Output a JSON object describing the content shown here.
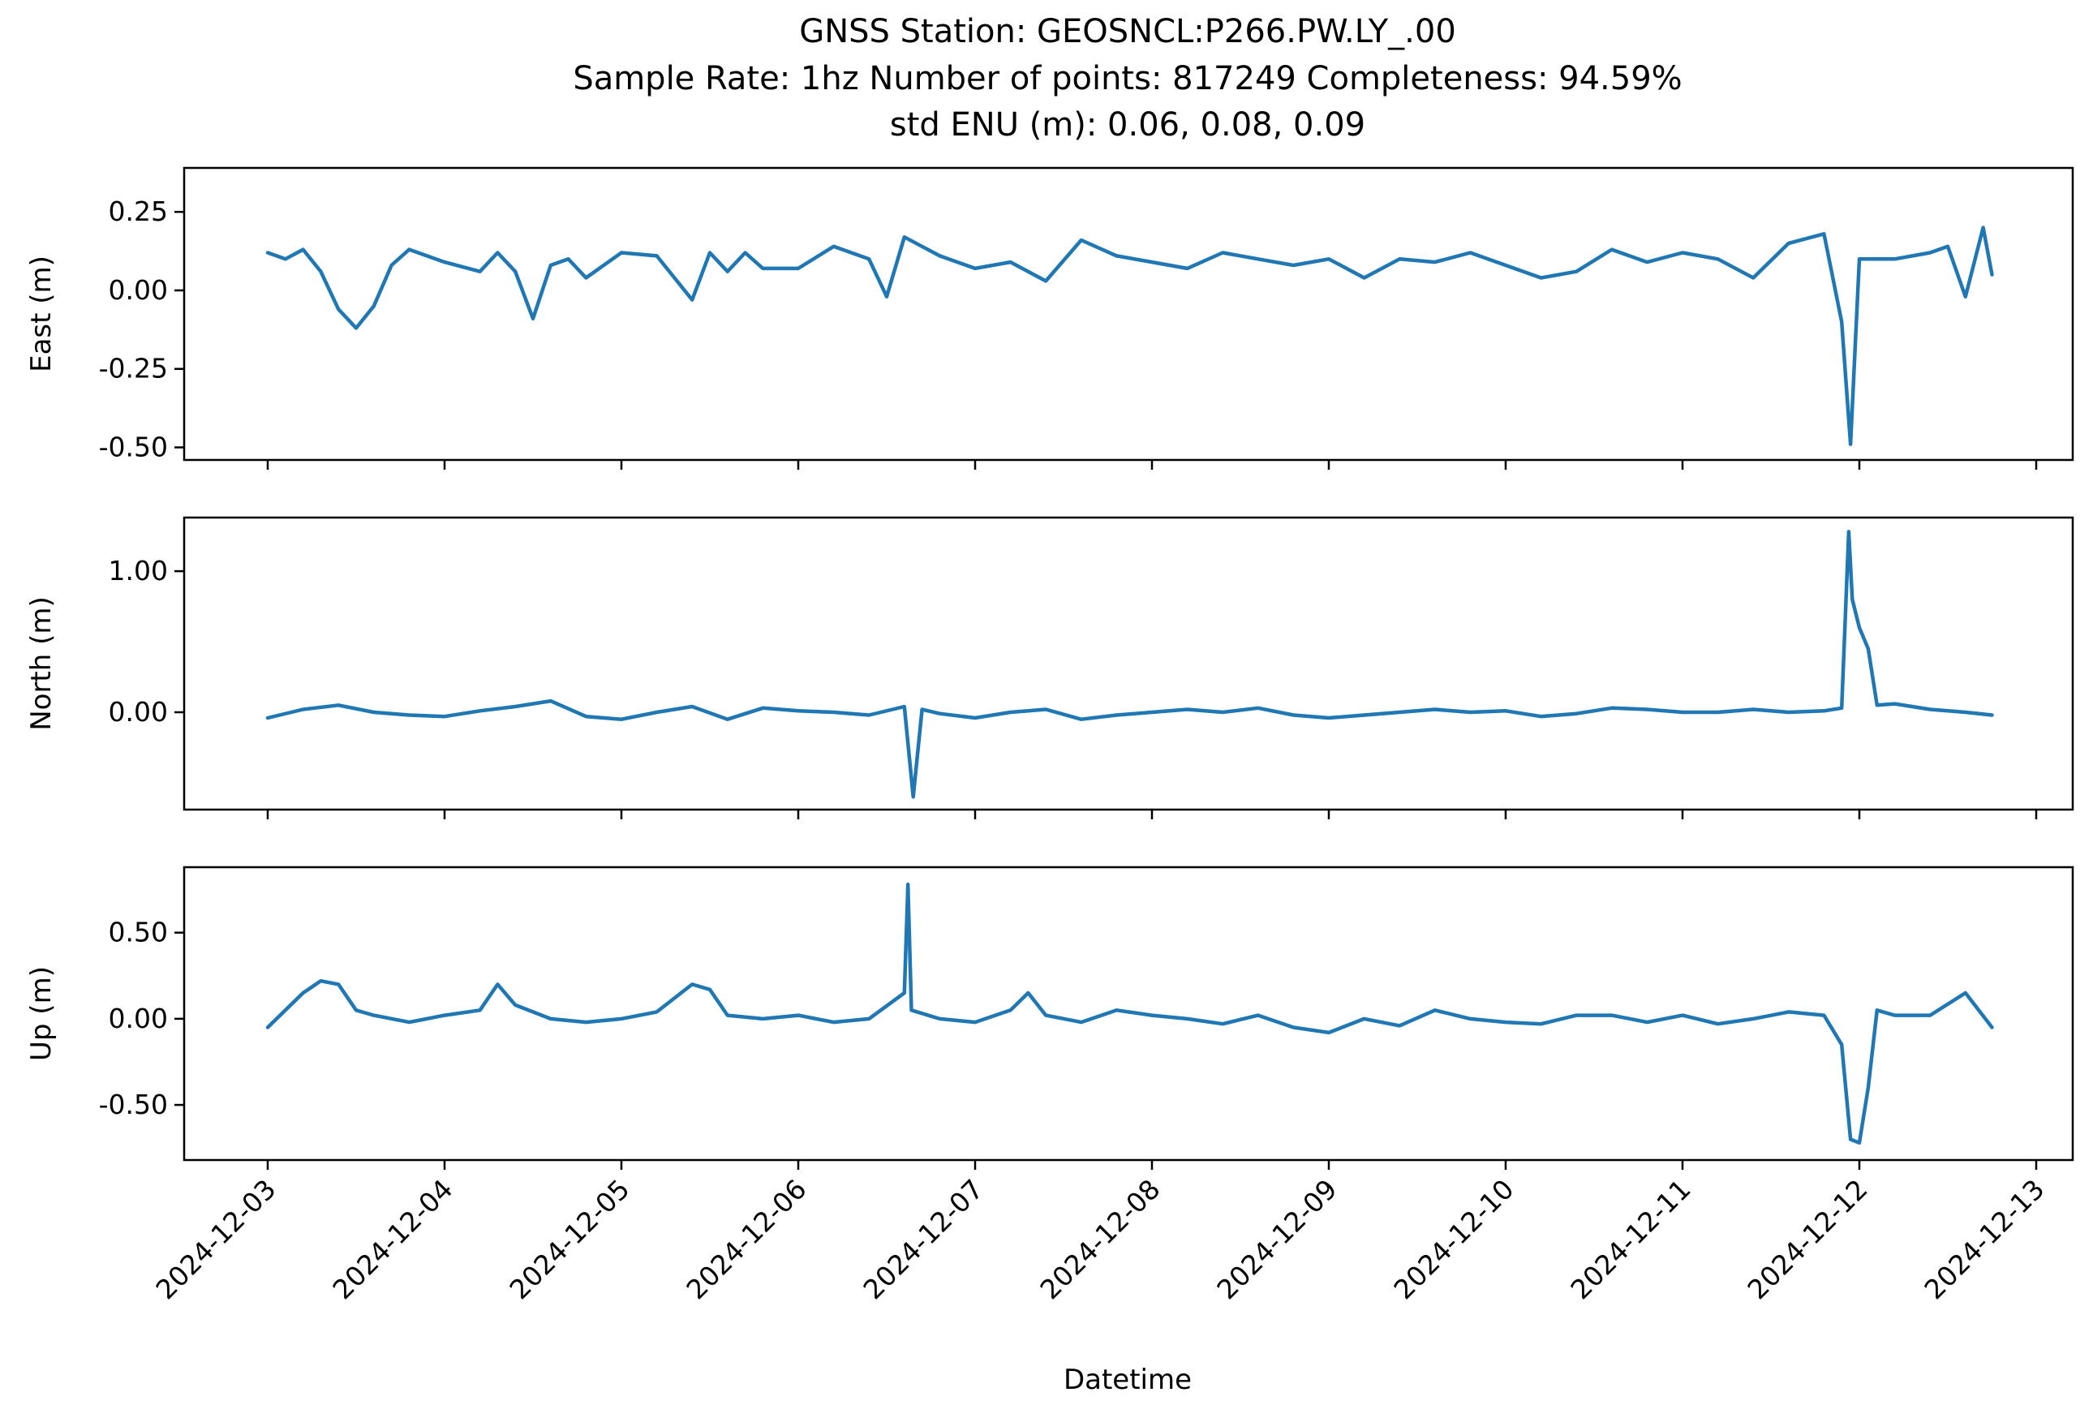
{
  "chart_data": {
    "type": "line",
    "title_lines": [
      "GNSS Station: GEOSNCL:P266.PW.LY_.00",
      "Sample Rate: 1hz   Number of points: 817249    Completeness:  94.59%",
      "std ENU (m):  0.06, 0.08, 0.09"
    ],
    "xlabel": "Datetime",
    "x_ticks": [
      "2024-12-03",
      "2024-12-04",
      "2024-12-05",
      "2024-12-06",
      "2024-12-07",
      "2024-12-08",
      "2024-12-09",
      "2024-12-10",
      "2024-12-11",
      "2024-12-12",
      "2024-12-13"
    ],
    "x_range_days": [
      0,
      10
    ],
    "data_span_days": [
      0,
      9.75
    ],
    "line_color": "#1f77b4",
    "grid": false,
    "subplots": [
      {
        "ylabel": "East (m)",
        "ylim": [
          -0.54,
          0.39
        ],
        "y_ticks": [
          0.25,
          0.0,
          -0.25,
          -0.5
        ],
        "y_tick_labels": [
          "0.25",
          "0.00",
          "-0.25",
          "-0.50"
        ],
        "x": [
          0,
          0.1,
          0.2,
          0.3,
          0.4,
          0.5,
          0.6,
          0.7,
          0.8,
          1.0,
          1.2,
          1.3,
          1.4,
          1.5,
          1.6,
          1.7,
          1.8,
          2.0,
          2.2,
          2.4,
          2.5,
          2.6,
          2.7,
          2.8,
          3.0,
          3.2,
          3.4,
          3.5,
          3.6,
          3.7,
          3.8,
          4.0,
          4.2,
          4.4,
          4.6,
          4.8,
          5.0,
          5.2,
          5.4,
          5.6,
          5.8,
          6.0,
          6.2,
          6.4,
          6.6,
          6.8,
          7.0,
          7.2,
          7.4,
          7.6,
          7.8,
          8.0,
          8.2,
          8.4,
          8.6,
          8.8,
          8.9,
          8.95,
          9.0,
          9.1,
          9.2,
          9.4,
          9.5,
          9.6,
          9.7,
          9.75
        ],
        "values": [
          0.12,
          0.1,
          0.13,
          0.06,
          -0.06,
          -0.12,
          -0.05,
          0.08,
          0.13,
          0.09,
          0.06,
          0.12,
          0.06,
          -0.09,
          0.08,
          0.1,
          0.04,
          0.12,
          0.11,
          -0.03,
          0.12,
          0.06,
          0.12,
          0.07,
          0.07,
          0.14,
          0.1,
          -0.02,
          0.17,
          0.14,
          0.11,
          0.07,
          0.09,
          0.03,
          0.16,
          0.11,
          0.09,
          0.07,
          0.12,
          0.1,
          0.08,
          0.1,
          0.04,
          0.1,
          0.09,
          0.12,
          0.08,
          0.04,
          0.06,
          0.13,
          0.09,
          0.12,
          0.1,
          0.04,
          0.15,
          0.18,
          -0.1,
          -0.49,
          0.1,
          0.1,
          0.1,
          0.12,
          0.14,
          -0.02,
          0.2,
          0.05
        ]
      },
      {
        "ylabel": "North (m)",
        "ylim": [
          -0.69,
          1.38
        ],
        "y_ticks": [
          1.0,
          0.0
        ],
        "y_tick_labels": [
          "1.00",
          "0.00"
        ],
        "x": [
          0,
          0.2,
          0.4,
          0.6,
          0.8,
          1.0,
          1.2,
          1.4,
          1.6,
          1.8,
          2.0,
          2.2,
          2.4,
          2.6,
          2.8,
          3.0,
          3.2,
          3.4,
          3.6,
          3.65,
          3.7,
          3.8,
          4.0,
          4.2,
          4.4,
          4.6,
          4.8,
          5.0,
          5.2,
          5.4,
          5.6,
          5.8,
          6.0,
          6.2,
          6.4,
          6.6,
          6.8,
          7.0,
          7.2,
          7.4,
          7.6,
          7.8,
          8.0,
          8.2,
          8.4,
          8.6,
          8.8,
          8.9,
          8.94,
          8.96,
          9.0,
          9.05,
          9.1,
          9.2,
          9.4,
          9.6,
          9.75
        ],
        "values": [
          -0.04,
          0.02,
          0.05,
          0.0,
          -0.02,
          -0.03,
          0.01,
          0.04,
          0.08,
          -0.03,
          -0.05,
          0.0,
          0.04,
          -0.05,
          0.03,
          0.01,
          0.0,
          -0.02,
          0.04,
          -0.6,
          0.02,
          -0.01,
          -0.04,
          0.0,
          0.02,
          -0.05,
          -0.02,
          0.0,
          0.02,
          0.0,
          0.03,
          -0.02,
          -0.04,
          -0.02,
          0.0,
          0.02,
          0.0,
          0.01,
          -0.03,
          -0.01,
          0.03,
          0.02,
          0.0,
          0.0,
          0.02,
          0.0,
          0.01,
          0.03,
          1.28,
          0.8,
          0.6,
          0.45,
          0.05,
          0.06,
          0.02,
          0.0,
          -0.02
        ]
      },
      {
        "ylabel": "Up (m)",
        "ylim": [
          -0.82,
          0.88
        ],
        "y_ticks": [
          0.5,
          0.0,
          -0.5
        ],
        "y_tick_labels": [
          "0.50",
          "0.00",
          "-0.50"
        ],
        "x": [
          0,
          0.1,
          0.2,
          0.3,
          0.4,
          0.5,
          0.6,
          0.8,
          1.0,
          1.2,
          1.3,
          1.4,
          1.6,
          1.8,
          2.0,
          2.2,
          2.3,
          2.4,
          2.5,
          2.6,
          2.8,
          3.0,
          3.2,
          3.4,
          3.6,
          3.62,
          3.64,
          3.8,
          4.0,
          4.2,
          4.3,
          4.4,
          4.6,
          4.8,
          5.0,
          5.2,
          5.4,
          5.6,
          5.8,
          6.0,
          6.2,
          6.4,
          6.6,
          6.8,
          7.0,
          7.2,
          7.4,
          7.6,
          7.8,
          8.0,
          8.2,
          8.4,
          8.6,
          8.8,
          8.9,
          8.95,
          9.0,
          9.05,
          9.1,
          9.2,
          9.4,
          9.6,
          9.75
        ],
        "values": [
          -0.05,
          0.05,
          0.15,
          0.22,
          0.2,
          0.05,
          0.02,
          -0.02,
          0.02,
          0.05,
          0.2,
          0.08,
          0.0,
          -0.02,
          0.0,
          0.04,
          0.12,
          0.2,
          0.17,
          0.02,
          0.0,
          0.02,
          -0.02,
          0.0,
          0.15,
          0.78,
          0.05,
          0.0,
          -0.02,
          0.05,
          0.15,
          0.02,
          -0.02,
          0.05,
          0.02,
          0.0,
          -0.03,
          0.02,
          -0.05,
          -0.08,
          0.0,
          -0.04,
          0.05,
          0.0,
          -0.02,
          -0.03,
          0.02,
          0.02,
          -0.02,
          0.02,
          -0.03,
          0.0,
          0.04,
          0.02,
          -0.15,
          -0.7,
          -0.72,
          -0.4,
          0.05,
          0.02,
          0.02,
          0.15,
          -0.05
        ]
      }
    ]
  }
}
